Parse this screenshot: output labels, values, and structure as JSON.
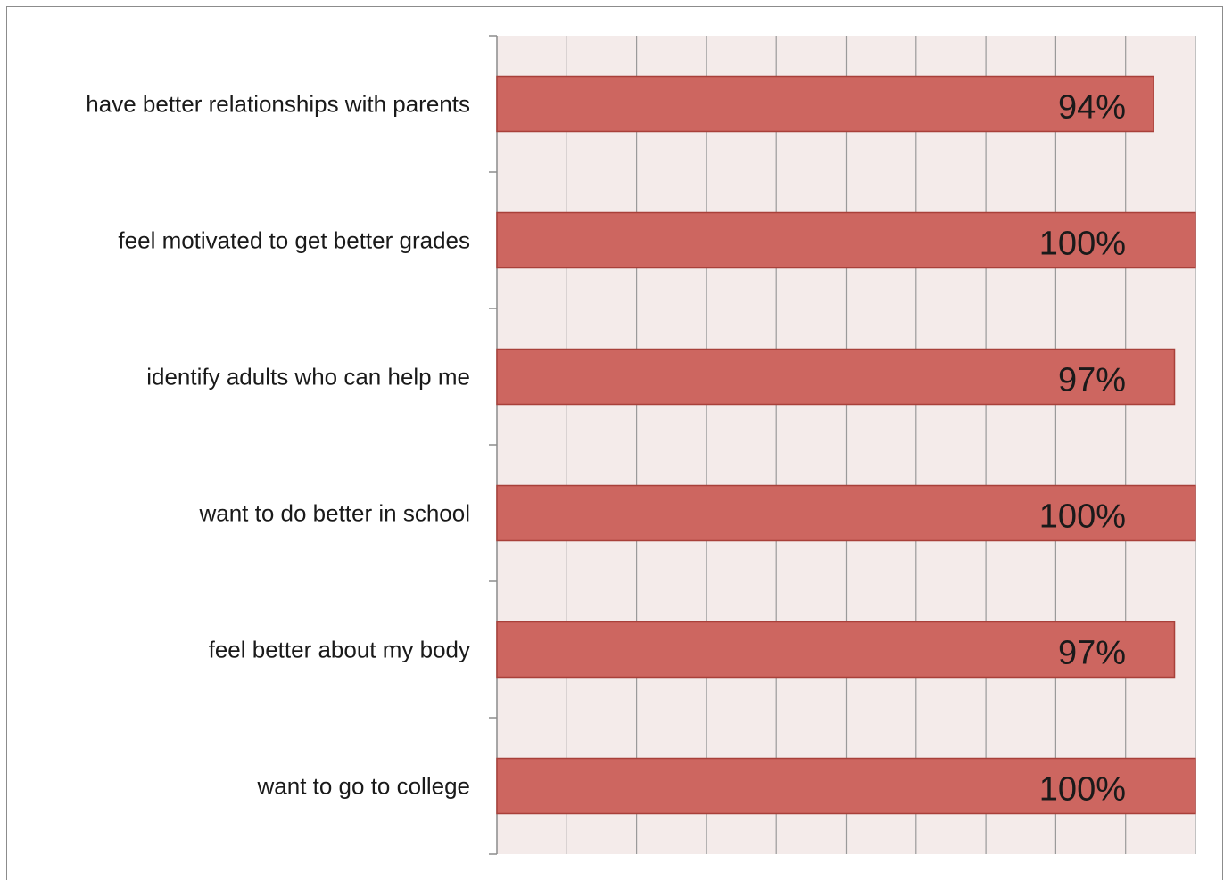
{
  "chart_data": {
    "type": "bar",
    "orientation": "horizontal",
    "categories": [
      "have better relationships with parents",
      "feel motivated to get better grades",
      "identify adults who can help me",
      "want to do better in school",
      "feel better about my body",
      "want to go to college"
    ],
    "values": [
      94,
      100,
      97,
      100,
      97,
      100
    ],
    "data_labels": [
      "94%",
      "100%",
      "97%",
      "100%",
      "97%",
      "100%"
    ],
    "xlim": [
      0,
      100
    ],
    "grid": true,
    "legend": "none",
    "colors": {
      "bar_fill": "#cd6660",
      "bar_stroke": "#a8403a",
      "plot_background": "#f4ebea",
      "gridline": "#9a9a9a"
    }
  }
}
